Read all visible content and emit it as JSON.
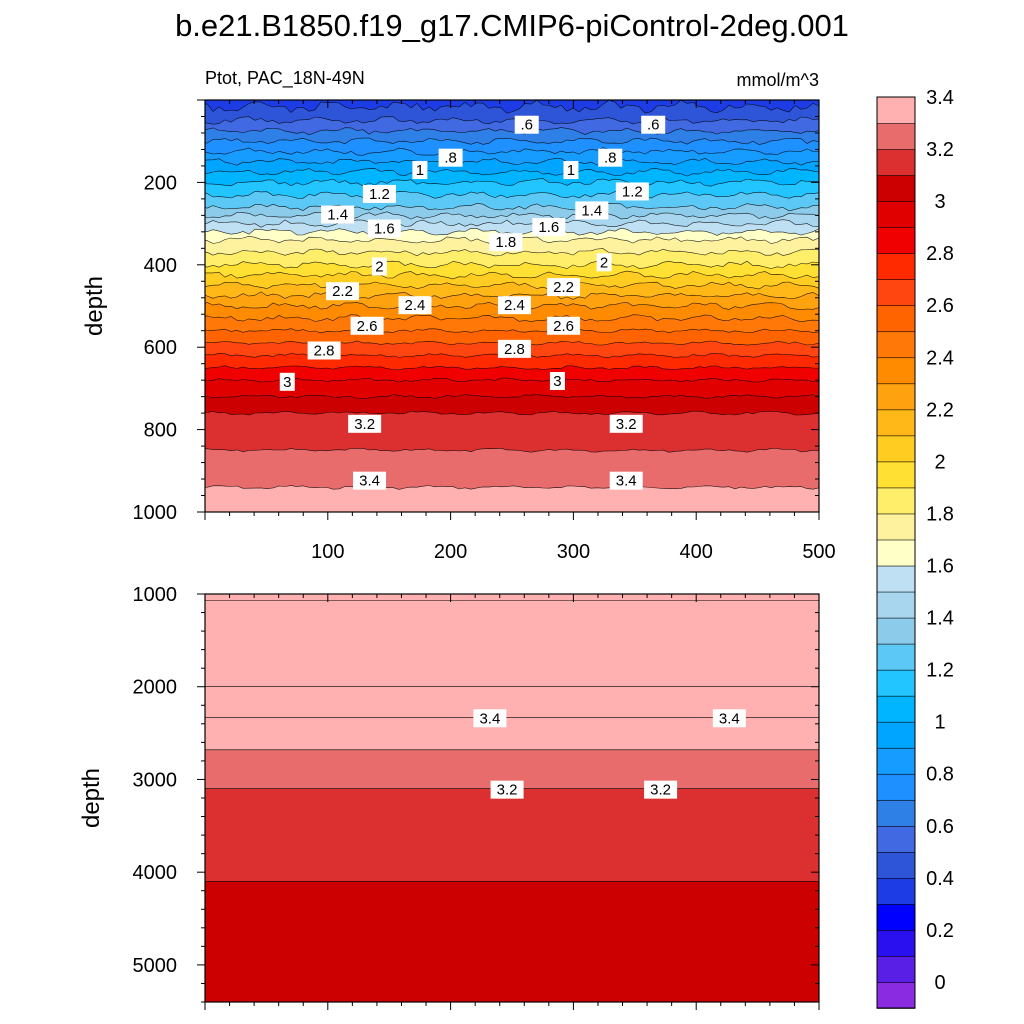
{
  "title": "b.e21.B1850.f19_g17.CMIP6-piControl-2deg.001",
  "subtitle_left": "Ptot, PAC_18N-49N",
  "subtitle_right": "mmol/m^3",
  "chart_data": [
    {
      "type": "contour",
      "panel": "upper",
      "ylabel": "depth",
      "xlim": [
        0,
        500
      ],
      "ylim": [
        1000,
        0
      ],
      "x_ticks": [
        100,
        200,
        300,
        400,
        500
      ],
      "y_ticks": [
        200,
        400,
        600,
        800,
        1000
      ],
      "profile": [
        {
          "depth": 0,
          "value": 0.45
        },
        {
          "depth": 50,
          "value": 0.6
        },
        {
          "depth": 100,
          "value": 0.8
        },
        {
          "depth": 150,
          "value": 1.0
        },
        {
          "depth": 200,
          "value": 1.2
        },
        {
          "depth": 260,
          "value": 1.4
        },
        {
          "depth": 300,
          "value": 1.6
        },
        {
          "depth": 340,
          "value": 1.8
        },
        {
          "depth": 400,
          "value": 2.0
        },
        {
          "depth": 450,
          "value": 2.2
        },
        {
          "depth": 500,
          "value": 2.4
        },
        {
          "depth": 560,
          "value": 2.6
        },
        {
          "depth": 620,
          "value": 2.8
        },
        {
          "depth": 680,
          "value": 3.0
        },
        {
          "depth": 760,
          "value": 3.2
        },
        {
          "depth": 850,
          "value": 3.3
        },
        {
          "depth": 940,
          "value": 3.4
        },
        {
          "depth": 1000,
          "value": 3.45
        }
      ],
      "contour_labels": [
        {
          "text": ".6",
          "x": 262,
          "depth": 60
        },
        {
          "text": ".6",
          "x": 365,
          "depth": 60
        },
        {
          "text": ".8",
          "x": 200,
          "depth": 140
        },
        {
          "text": ".8",
          "x": 330,
          "depth": 140
        },
        {
          "text": "1",
          "x": 175,
          "depth": 170
        },
        {
          "text": "1",
          "x": 298,
          "depth": 170
        },
        {
          "text": "1.2",
          "x": 142,
          "depth": 228
        },
        {
          "text": "1.2",
          "x": 348,
          "depth": 222
        },
        {
          "text": "1.4",
          "x": 108,
          "depth": 278
        },
        {
          "text": "1.4",
          "x": 315,
          "depth": 268
        },
        {
          "text": "1.6",
          "x": 146,
          "depth": 312
        },
        {
          "text": "1.6",
          "x": 280,
          "depth": 308
        },
        {
          "text": "1.8",
          "x": 245,
          "depth": 345
        },
        {
          "text": "2",
          "x": 142,
          "depth": 404
        },
        {
          "text": "2",
          "x": 325,
          "depth": 394
        },
        {
          "text": "2.2",
          "x": 112,
          "depth": 464
        },
        {
          "text": "2.2",
          "x": 292,
          "depth": 454
        },
        {
          "text": "2.4",
          "x": 171,
          "depth": 498
        },
        {
          "text": "2.4",
          "x": 252,
          "depth": 498
        },
        {
          "text": "2.6",
          "x": 132,
          "depth": 548
        },
        {
          "text": "2.6",
          "x": 292,
          "depth": 548
        },
        {
          "text": "2.8",
          "x": 97,
          "depth": 608
        },
        {
          "text": "2.8",
          "x": 252,
          "depth": 604
        },
        {
          "text": "3",
          "x": 67,
          "depth": 684
        },
        {
          "text": "3",
          "x": 287,
          "depth": 682
        },
        {
          "text": "3.2",
          "x": 130,
          "depth": 786
        },
        {
          "text": "3.2",
          "x": 343,
          "depth": 786
        },
        {
          "text": "3.4",
          "x": 134,
          "depth": 924
        },
        {
          "text": "3.4",
          "x": 343,
          "depth": 924
        }
      ]
    },
    {
      "type": "contour",
      "panel": "lower",
      "ylabel": "depth",
      "ylim": [
        1000,
        5400
      ],
      "y_ticks": [
        1000,
        2000,
        3000,
        4000,
        5000
      ],
      "bands": [
        {
          "top": 1000,
          "bottom": 1070,
          "value": 3.5
        },
        {
          "top": 1070,
          "bottom": 2000,
          "value": 3.6
        },
        {
          "top": 2000,
          "bottom": 2330,
          "value": 3.5
        },
        {
          "top": 2330,
          "bottom": 2680,
          "value": 3.4
        },
        {
          "top": 2680,
          "bottom": 3100,
          "value": 3.3
        },
        {
          "top": 3100,
          "bottom": 4100,
          "value": 3.2
        },
        {
          "top": 4100,
          "bottom": 5400,
          "value": 3.1
        }
      ],
      "contour_labels": [
        {
          "text": "3.4",
          "x": 232,
          "depth": 2340
        },
        {
          "text": "3.4",
          "x": 427,
          "depth": 2340
        },
        {
          "text": "3.2",
          "x": 246,
          "depth": 3110
        },
        {
          "text": "3.2",
          "x": 371,
          "depth": 3110
        }
      ]
    }
  ],
  "colorbar": {
    "colors": [
      "#8A2BE2",
      "#5A1FE6",
      "#2A10EE",
      "#0000FF",
      "#1E3CE6",
      "#2E55D8",
      "#4169E1",
      "#2E7FE6",
      "#1E90FF",
      "#169BFF",
      "#00A5FF",
      "#00B5FF",
      "#22C5FF",
      "#5CC8F5",
      "#8CCBEA",
      "#A8D6EE",
      "#BEE0F2",
      "#FFFFC8",
      "#FFF29E",
      "#FFEE6A",
      "#FFE033",
      "#FFCC22",
      "#FFB818",
      "#FFA210",
      "#FF8C00",
      "#FF7808",
      "#FF6400",
      "#FF4610",
      "#FF2A00",
      "#F00000",
      "#E00000",
      "#CC0000",
      "#DC3030",
      "#E86C6C",
      "#FFB0B0"
    ],
    "tick_labels": [
      "0",
      "0.2",
      "0.4",
      "0.6",
      "0.8",
      "1",
      "1.2",
      "1.4",
      "1.6",
      "1.8",
      "2",
      "2.2",
      "2.4",
      "2.6",
      "2.8",
      "3",
      "3.2",
      "3.4"
    ]
  }
}
